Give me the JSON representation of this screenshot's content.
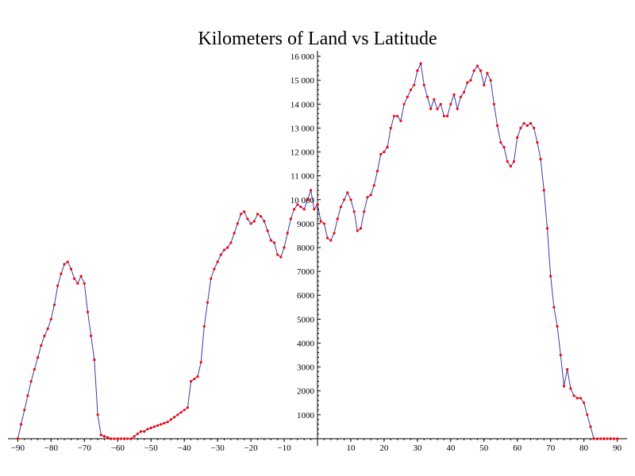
{
  "chart_data": {
    "type": "line",
    "title": "Kilometers of Land vs Latitude",
    "xlabel": "",
    "ylabel": "",
    "xlim": [
      -92,
      92
    ],
    "ylim": [
      -300,
      16300
    ],
    "x_ticks": [
      -90,
      -80,
      -70,
      -60,
      -50,
      -40,
      -30,
      -20,
      -10,
      10,
      20,
      30,
      40,
      50,
      60,
      70,
      80,
      90
    ],
    "y_ticks": [
      1000,
      2000,
      3000,
      4000,
      5000,
      6000,
      7000,
      8000,
      9000,
      10000,
      11000,
      12000,
      13000,
      14000,
      15000,
      16000
    ],
    "y_tick_labels": [
      "1000",
      "2000",
      "3000",
      "4000",
      "5000",
      "6000",
      "7000",
      "8000",
      "9000",
      "10 000",
      "11 000",
      "12 000",
      "13 000",
      "14 000",
      "15 000",
      "16 000"
    ],
    "grid": false,
    "series": [
      {
        "line_color": "#3a3aa8",
        "marker_color": "#ff0000",
        "points": [
          [
            -90,
            0
          ],
          [
            -89,
            600
          ],
          [
            -88,
            1200
          ],
          [
            -87,
            1800
          ],
          [
            -86,
            2400
          ],
          [
            -85,
            2900
          ],
          [
            -84,
            3400
          ],
          [
            -83,
            3900
          ],
          [
            -82,
            4300
          ],
          [
            -81,
            4600
          ],
          [
            -80,
            5000
          ],
          [
            -79,
            5600
          ],
          [
            -78,
            6400
          ],
          [
            -77,
            6900
          ],
          [
            -76,
            7300
          ],
          [
            -75,
            7400
          ],
          [
            -74,
            7100
          ],
          [
            -73,
            6700
          ],
          [
            -72,
            6500
          ],
          [
            -71,
            6800
          ],
          [
            -70,
            6500
          ],
          [
            -69,
            5300
          ],
          [
            -68,
            4300
          ],
          [
            -67,
            3300
          ],
          [
            -66,
            1000
          ],
          [
            -65,
            150
          ],
          [
            -64,
            100
          ],
          [
            -63,
            50
          ],
          [
            -62,
            0
          ],
          [
            -61,
            0
          ],
          [
            -60,
            0
          ],
          [
            -59,
            0
          ],
          [
            -58,
            0
          ],
          [
            -57,
            0
          ],
          [
            -56,
            0
          ],
          [
            -55,
            100
          ],
          [
            -54,
            200
          ],
          [
            -53,
            300
          ],
          [
            -52,
            300
          ],
          [
            -51,
            400
          ],
          [
            -50,
            450
          ],
          [
            -49,
            500
          ],
          [
            -48,
            550
          ],
          [
            -47,
            600
          ],
          [
            -46,
            650
          ],
          [
            -45,
            700
          ],
          [
            -44,
            800
          ],
          [
            -43,
            900
          ],
          [
            -42,
            1000
          ],
          [
            -41,
            1100
          ],
          [
            -40,
            1200
          ],
          [
            -39,
            1300
          ],
          [
            -38,
            2400
          ],
          [
            -37,
            2500
          ],
          [
            -36,
            2600
          ],
          [
            -35,
            3200
          ],
          [
            -34,
            4700
          ],
          [
            -33,
            5700
          ],
          [
            -32,
            6700
          ],
          [
            -31,
            7100
          ],
          [
            -30,
            7400
          ],
          [
            -29,
            7700
          ],
          [
            -28,
            7900
          ],
          [
            -27,
            8000
          ],
          [
            -26,
            8200
          ],
          [
            -25,
            8600
          ],
          [
            -24,
            9000
          ],
          [
            -23,
            9400
          ],
          [
            -22,
            9500
          ],
          [
            -21,
            9200
          ],
          [
            -20,
            9000
          ],
          [
            -19,
            9100
          ],
          [
            -18,
            9400
          ],
          [
            -17,
            9300
          ],
          [
            -16,
            9100
          ],
          [
            -15,
            8700
          ],
          [
            -14,
            8300
          ],
          [
            -13,
            8200
          ],
          [
            -12,
            7700
          ],
          [
            -11,
            7600
          ],
          [
            -10,
            8000
          ],
          [
            -9,
            8600
          ],
          [
            -8,
            9200
          ],
          [
            -7,
            9600
          ],
          [
            -6,
            9800
          ],
          [
            -5,
            9700
          ],
          [
            -4,
            9600
          ],
          [
            -3,
            10000
          ],
          [
            -2,
            10400
          ],
          [
            -1,
            9600
          ],
          [
            0,
            9800
          ],
          [
            1,
            9100
          ],
          [
            2,
            9000
          ],
          [
            3,
            8400
          ],
          [
            4,
            8300
          ],
          [
            5,
            8600
          ],
          [
            6,
            9200
          ],
          [
            7,
            9700
          ],
          [
            8,
            10000
          ],
          [
            9,
            10300
          ],
          [
            10,
            10000
          ],
          [
            11,
            9500
          ],
          [
            12,
            8700
          ],
          [
            13,
            8800
          ],
          [
            14,
            9500
          ],
          [
            15,
            10100
          ],
          [
            16,
            10200
          ],
          [
            17,
            10600
          ],
          [
            18,
            11200
          ],
          [
            19,
            11900
          ],
          [
            20,
            12000
          ],
          [
            21,
            12200
          ],
          [
            22,
            13000
          ],
          [
            23,
            13500
          ],
          [
            24,
            13500
          ],
          [
            25,
            13300
          ],
          [
            26,
            14000
          ],
          [
            27,
            14300
          ],
          [
            28,
            14600
          ],
          [
            29,
            14800
          ],
          [
            30,
            15400
          ],
          [
            31,
            15700
          ],
          [
            32,
            14800
          ],
          [
            33,
            14300
          ],
          [
            34,
            13800
          ],
          [
            35,
            14200
          ],
          [
            36,
            13800
          ],
          [
            37,
            14000
          ],
          [
            38,
            13500
          ],
          [
            39,
            13500
          ],
          [
            40,
            14000
          ],
          [
            41,
            14400
          ],
          [
            42,
            13800
          ],
          [
            43,
            14300
          ],
          [
            44,
            14500
          ],
          [
            45,
            14900
          ],
          [
            46,
            15000
          ],
          [
            47,
            15400
          ],
          [
            48,
            15600
          ],
          [
            49,
            15400
          ],
          [
            50,
            14800
          ],
          [
            51,
            15300
          ],
          [
            52,
            15000
          ],
          [
            53,
            14000
          ],
          [
            54,
            13100
          ],
          [
            55,
            12400
          ],
          [
            56,
            12200
          ],
          [
            57,
            11600
          ],
          [
            58,
            11400
          ],
          [
            59,
            11600
          ],
          [
            60,
            12600
          ],
          [
            61,
            13000
          ],
          [
            62,
            13200
          ],
          [
            63,
            13100
          ],
          [
            64,
            13200
          ],
          [
            65,
            13000
          ],
          [
            66,
            12400
          ],
          [
            67,
            11700
          ],
          [
            68,
            10400
          ],
          [
            69,
            8800
          ],
          [
            70,
            6800
          ],
          [
            71,
            5500
          ],
          [
            72,
            4700
          ],
          [
            73,
            3500
          ],
          [
            74,
            2200
          ],
          [
            75,
            2900
          ],
          [
            76,
            2100
          ],
          [
            77,
            1800
          ],
          [
            78,
            1700
          ],
          [
            79,
            1700
          ],
          [
            80,
            1500
          ],
          [
            81,
            1000
          ],
          [
            82,
            500
          ],
          [
            83,
            0
          ],
          [
            84,
            0
          ],
          [
            85,
            0
          ],
          [
            86,
            0
          ],
          [
            87,
            0
          ],
          [
            88,
            0
          ],
          [
            89,
            0
          ],
          [
            90,
            0
          ]
        ]
      }
    ]
  }
}
